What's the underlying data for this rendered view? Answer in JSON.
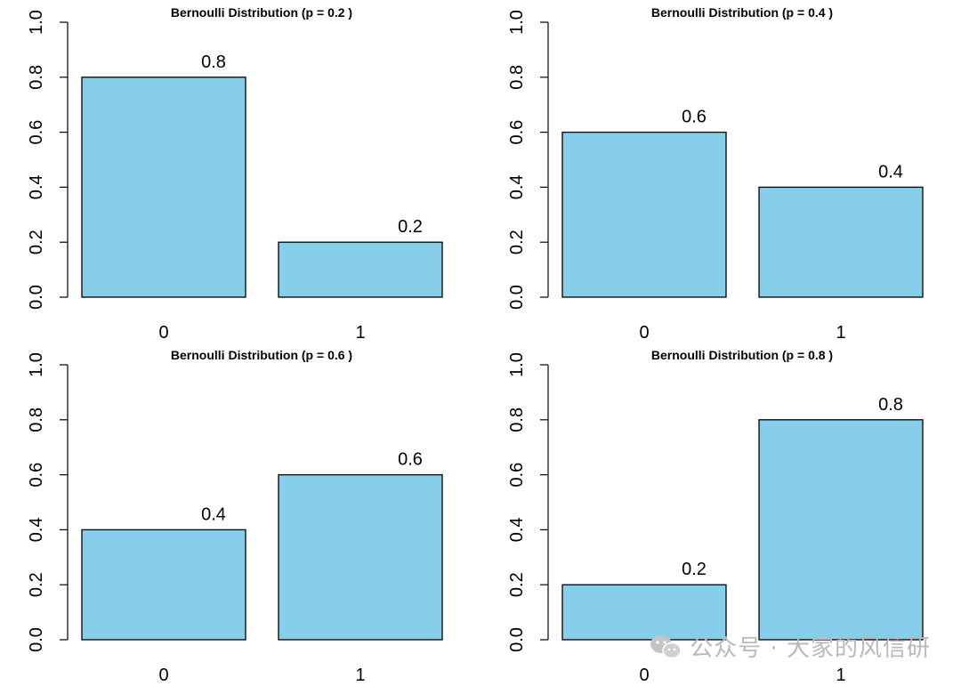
{
  "chart_data": [
    {
      "type": "bar",
      "title": "Bernoulli Distribution (p = 0.2 )",
      "categories": [
        "0",
        "1"
      ],
      "values": [
        0.8,
        0.2
      ],
      "data_labels": [
        "0.8",
        "0.2"
      ],
      "ylim": [
        0,
        1
      ],
      "yticks": [
        "0.0",
        "0.2",
        "0.4",
        "0.6",
        "0.8",
        "1.0"
      ],
      "xlabel": "",
      "ylabel": ""
    },
    {
      "type": "bar",
      "title": "Bernoulli Distribution (p = 0.4 )",
      "categories": [
        "0",
        "1"
      ],
      "values": [
        0.6,
        0.4
      ],
      "data_labels": [
        "0.6",
        "0.4"
      ],
      "ylim": [
        0,
        1
      ],
      "yticks": [
        "0.0",
        "0.2",
        "0.4",
        "0.6",
        "0.8",
        "1.0"
      ],
      "xlabel": "",
      "ylabel": ""
    },
    {
      "type": "bar",
      "title": "Bernoulli Distribution (p = 0.6 )",
      "categories": [
        "0",
        "1"
      ],
      "values": [
        0.4,
        0.6
      ],
      "data_labels": [
        "0.4",
        "0.6"
      ],
      "ylim": [
        0,
        1
      ],
      "yticks": [
        "0.0",
        "0.2",
        "0.4",
        "0.6",
        "0.8",
        "1.0"
      ],
      "xlabel": "",
      "ylabel": ""
    },
    {
      "type": "bar",
      "title": "Bernoulli Distribution (p = 0.8 )",
      "categories": [
        "0",
        "1"
      ],
      "values": [
        0.2,
        0.8
      ],
      "data_labels": [
        "0.2",
        "0.8"
      ],
      "ylim": [
        0,
        1
      ],
      "yticks": [
        "0.0",
        "0.2",
        "0.4",
        "0.6",
        "0.8",
        "1.0"
      ],
      "xlabel": "",
      "ylabel": ""
    }
  ],
  "colors": {
    "bar_fill": "#87CEEB",
    "bar_stroke": "#000000",
    "axis": "#000000",
    "watermark": "#b9b9b9"
  },
  "watermark": {
    "text": "公众号 · 大家的风信研",
    "icon": "wechat-icon"
  }
}
